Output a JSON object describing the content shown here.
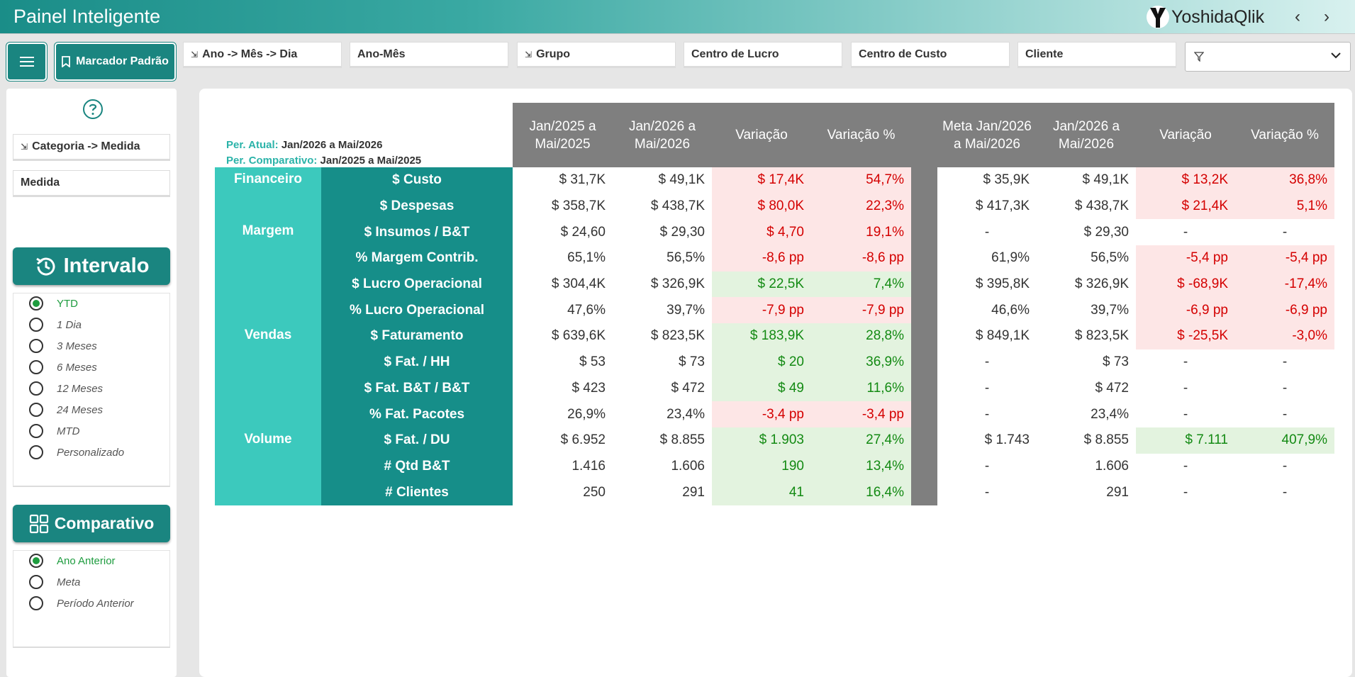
{
  "app": {
    "title": "Painel Inteligente",
    "brand": "YoshidaQlik",
    "nav_prev": "‹",
    "nav_next": "›"
  },
  "toolbar": {
    "bookmark_label": "Marcador Padrão",
    "filters": [
      {
        "label": "Ano -> Mês -> Dia",
        "hierarchy": true
      },
      {
        "label": "Ano-Mês",
        "hierarchy": false
      },
      {
        "label": "Grupo",
        "hierarchy": true
      },
      {
        "label": "Centro de Lucro",
        "hierarchy": false
      },
      {
        "label": "Centro de Custo",
        "hierarchy": false
      },
      {
        "label": "Cliente",
        "hierarchy": false
      }
    ]
  },
  "sidebar": {
    "filters": [
      "Categoria -> Medida",
      "Medida"
    ],
    "intervalo": {
      "title": "Intervalo",
      "options": [
        "YTD",
        "1 Dia",
        "3 Meses",
        "6 Meses",
        "12 Meses",
        "24 Meses",
        "MTD",
        "Personalizado"
      ],
      "selected": "YTD"
    },
    "comparativo": {
      "title": "Comparativo",
      "options": [
        "Ano Anterior",
        "Meta",
        "Período Anterior"
      ],
      "selected": "Ano Anterior"
    }
  },
  "period": {
    "atual_label": "Per. Atual:",
    "atual_value": "Jan/2026 a Mai/2026",
    "comp_label": "Per. Comparativo:",
    "comp_value": "Jan/2025 a Mai/2025"
  },
  "table": {
    "headers": [
      "Jan/2025 a Mai/2025",
      "Jan/2026 a Mai/2026",
      "Variação",
      "Variação %",
      "Meta Jan/2026 a Mai/2026",
      "Jan/2026 a Mai/2026",
      "Variação",
      "Variação %"
    ],
    "groups": [
      {
        "name": "Financeiro",
        "rows": 2
      },
      {
        "name": "Margem",
        "rows": 4
      },
      {
        "name": "Vendas",
        "rows": 4
      },
      {
        "name": "Volume",
        "rows": 3
      }
    ],
    "rows": [
      {
        "measure": "$ Custo",
        "v1": "$ 31,7K",
        "v2": "$ 49,1K",
        "var": "$ 17,4K",
        "varp": "54,7%",
        "s1": "red",
        "meta": "$ 35,9K",
        "v3": "$ 49,1K",
        "var2": "$ 13,2K",
        "varp2": "36,8%",
        "s2": "red"
      },
      {
        "measure": "$ Despesas",
        "v1": "$ 358,7K",
        "v2": "$ 438,7K",
        "var": "$ 80,0K",
        "varp": "22,3%",
        "s1": "red",
        "meta": "$ 417,3K",
        "v3": "$ 438,7K",
        "var2": "$ 21,4K",
        "varp2": "5,1%",
        "s2": "red"
      },
      {
        "measure": "$ Insumos / B&T",
        "v1": "$ 24,60",
        "v2": "$ 29,30",
        "var": "$ 4,70",
        "varp": "19,1%",
        "s1": "red",
        "meta": "-",
        "v3": "$ 29,30",
        "var2": "-",
        "varp2": "-",
        "s2": "none"
      },
      {
        "measure": "% Margem Contrib.",
        "v1": "65,1%",
        "v2": "56,5%",
        "var": "-8,6 pp",
        "varp": "-8,6 pp",
        "s1": "red",
        "meta": "61,9%",
        "v3": "56,5%",
        "var2": "-5,4 pp",
        "varp2": "-5,4 pp",
        "s2": "red"
      },
      {
        "measure": "$ Lucro Operacional",
        "v1": "$ 304,4K",
        "v2": "$ 326,9K",
        "var": "$ 22,5K",
        "varp": "7,4%",
        "s1": "green",
        "meta": "$ 395,8K",
        "v3": "$ 326,9K",
        "var2": "$ -68,9K",
        "varp2": "-17,4%",
        "s2": "red"
      },
      {
        "measure": "% Lucro Operacional",
        "v1": "47,6%",
        "v2": "39,7%",
        "var": "-7,9 pp",
        "varp": "-7,9 pp",
        "s1": "red",
        "meta": "46,6%",
        "v3": "39,7%",
        "var2": "-6,9 pp",
        "varp2": "-6,9 pp",
        "s2": "red"
      },
      {
        "measure": "$ Faturamento",
        "v1": "$ 639,6K",
        "v2": "$ 823,5K",
        "var": "$ 183,9K",
        "varp": "28,8%",
        "s1": "green",
        "meta": "$ 849,1K",
        "v3": "$ 823,5K",
        "var2": "$ -25,5K",
        "varp2": "-3,0%",
        "s2": "red"
      },
      {
        "measure": "$ Fat. / HH",
        "v1": "$ 53",
        "v2": "$ 73",
        "var": "$ 20",
        "varp": "36,9%",
        "s1": "green",
        "meta": "-",
        "v3": "$ 73",
        "var2": "-",
        "varp2": "-",
        "s2": "none"
      },
      {
        "measure": "$ Fat. B&T / B&T",
        "v1": "$ 423",
        "v2": "$ 472",
        "var": "$ 49",
        "varp": "11,6%",
        "s1": "green",
        "meta": "-",
        "v3": "$ 472",
        "var2": "-",
        "varp2": "-",
        "s2": "none"
      },
      {
        "measure": "% Fat. Pacotes",
        "v1": "26,9%",
        "v2": "23,4%",
        "var": "-3,4 pp",
        "varp": "-3,4 pp",
        "s1": "red",
        "meta": "-",
        "v3": "23,4%",
        "var2": "-",
        "varp2": "-",
        "s2": "none"
      },
      {
        "measure": "$ Fat. / DU",
        "v1": "$ 6.952",
        "v2": "$ 8.855",
        "var": "$ 1.903",
        "varp": "27,4%",
        "s1": "green",
        "meta": "$ 1.743",
        "v3": "$ 8.855",
        "var2": "$ 7.111",
        "varp2": "407,9%",
        "s2": "green"
      },
      {
        "measure": "# Qtd B&T",
        "v1": "1.416",
        "v2": "1.606",
        "var": "190",
        "varp": "13,4%",
        "s1": "green",
        "meta": "-",
        "v3": "1.606",
        "var2": "-",
        "varp2": "-",
        "s2": "none"
      },
      {
        "measure": "# Clientes",
        "v1": "250",
        "v2": "291",
        "var": "41",
        "varp": "16,4%",
        "s1": "green",
        "meta": "-",
        "v3": "291",
        "var2": "-",
        "varp2": "-",
        "s2": "none"
      }
    ]
  },
  "colors": {
    "teal_dark": "#168e89",
    "teal_light": "#3cc9bd",
    "negative_text": "#d40000",
    "negative_bg": "#fde6e6",
    "positive_text": "#138a13",
    "positive_bg": "#e3f3df",
    "header_gray": "#7f7f7f"
  }
}
